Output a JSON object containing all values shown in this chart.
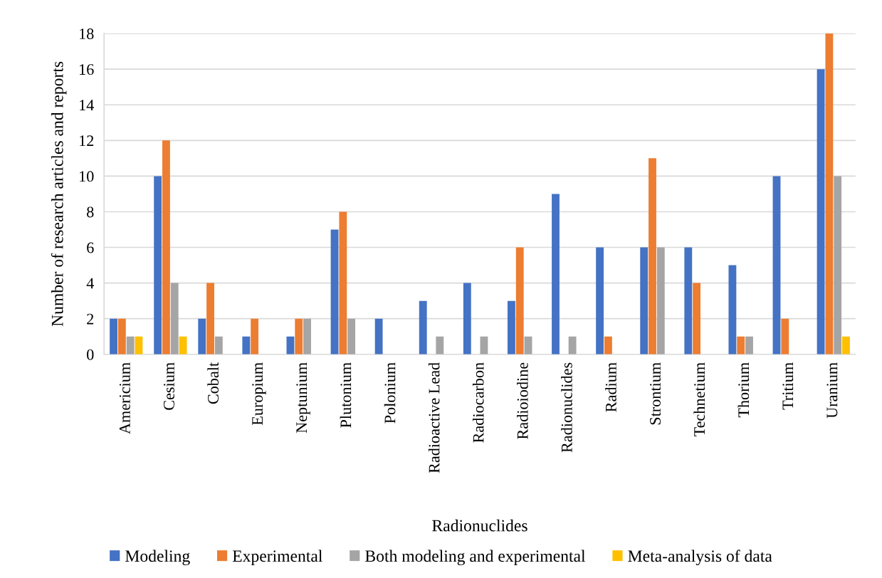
{
  "chart_data": {
    "type": "bar",
    "xlabel": "Radionuclides",
    "ylabel": "Number of research articles and reports",
    "categories": [
      "Americium",
      "Cesium",
      "Cobalt",
      "Europium",
      "Neptunium",
      "Plutonium",
      "Polonium",
      "Radioactive Lead",
      "Radiocarbon",
      "Radioiodine",
      "Radionuclides",
      "Radium",
      "Strontium",
      "Technetium",
      "Thorium",
      "Tritium",
      "Uranium"
    ],
    "series": [
      {
        "name": "Modeling",
        "color": "#4472c4",
        "values": [
          2,
          10,
          2,
          1,
          1,
          7,
          2,
          3,
          4,
          3,
          9,
          6,
          6,
          6,
          5,
          10,
          16
        ]
      },
      {
        "name": "Experimental",
        "color": "#ed7d31",
        "values": [
          2,
          12,
          4,
          2,
          2,
          8,
          0,
          0,
          0,
          6,
          0,
          1,
          11,
          4,
          1,
          2,
          18
        ]
      },
      {
        "name": "Both modeling and experimental",
        "color": "#a5a5a5",
        "values": [
          1,
          4,
          1,
          0,
          2,
          2,
          0,
          1,
          1,
          1,
          1,
          0,
          6,
          0,
          1,
          0,
          10
        ]
      },
      {
        "name": "Meta-analysis of data",
        "color": "#ffc000",
        "values": [
          1,
          1,
          0,
          0,
          0,
          0,
          0,
          0,
          0,
          0,
          0,
          0,
          0,
          0,
          0,
          0,
          1
        ]
      }
    ],
    "ylim": [
      0,
      18
    ],
    "yticks": [
      0,
      2,
      4,
      6,
      8,
      10,
      12,
      14,
      16,
      18
    ],
    "grid": "y",
    "legend": "bottom"
  }
}
